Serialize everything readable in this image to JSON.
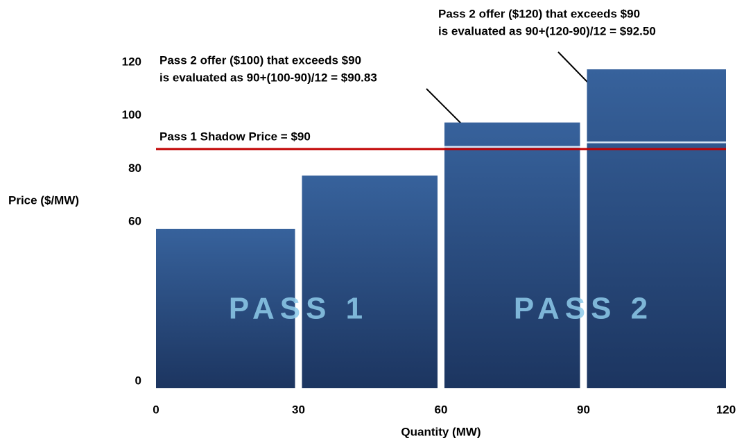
{
  "chart_data": {
    "type": "histogram",
    "bins": [
      0,
      30,
      60,
      90,
      120
    ],
    "values": [
      60,
      80,
      100,
      120
    ],
    "color": "#2e5590",
    "xlim": [
      0,
      120
    ],
    "xticks": [
      0,
      30,
      60,
      90,
      120
    ],
    "ylim": [
      0,
      120
    ],
    "yticks": [
      0,
      60,
      80,
      100,
      120
    ],
    "xlabel": "Quantity (MW)",
    "ylabel": "Price ($/MW)",
    "shadow_price": {
      "label": "Pass 1 Shadow Price = $90",
      "value": 90,
      "color": "#c00000"
    },
    "evaluated": [
      {
        "bar": 2,
        "value": 90.83,
        "lines": [
          "Pass 2 offer ($100) that exceeds $90",
          "is evaluated as 90+(100-90)/12 = $90.83"
        ]
      },
      {
        "bar": 3,
        "value": 92.5,
        "lines": [
          "Pass 2 offer ($120) that exceeds $90",
          "is evaluated as 90+(120-90)/12 = $92.50"
        ]
      }
    ],
    "region_labels": [
      "PASS 1",
      "PASS 2"
    ]
  }
}
